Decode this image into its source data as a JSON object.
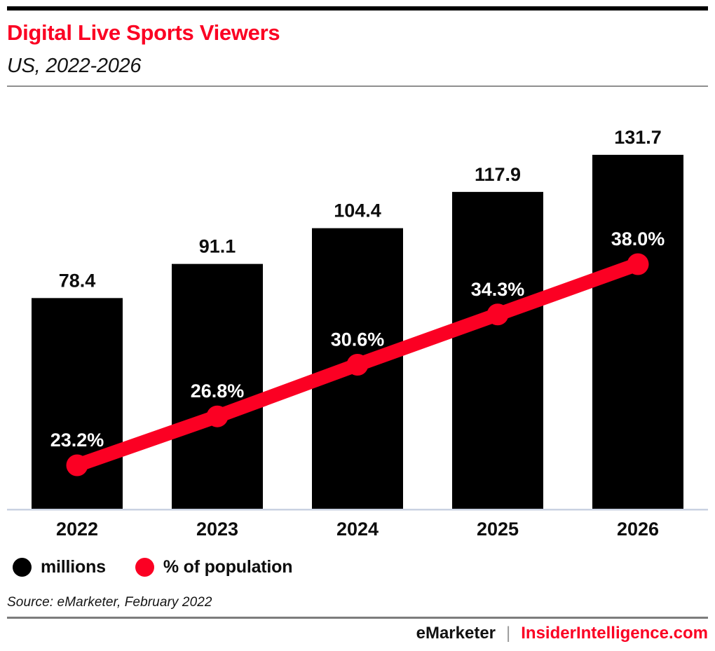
{
  "header": {
    "title": "Digital Live Sports Viewers",
    "subtitle": "US, 2022-2026"
  },
  "chart_data": {
    "type": "bar+line combo",
    "title": "Digital Live Sports Viewers",
    "subtitle": "US, 2022-2026",
    "categories": [
      "2022",
      "2023",
      "2024",
      "2025",
      "2026"
    ],
    "series": [
      {
        "name": "millions",
        "type": "bar",
        "color": "#000000",
        "values": [
          78.4,
          91.1,
          104.4,
          117.9,
          131.7
        ],
        "labels": [
          "78.4",
          "91.1",
          "104.4",
          "117.9",
          "131.7"
        ],
        "label_color": "#0d0d0d"
      },
      {
        "name": "% of population",
        "type": "line",
        "color": "#fb0023",
        "values": [
          23.2,
          26.8,
          30.6,
          34.3,
          38.0
        ],
        "labels": [
          "23.2%",
          "26.8%",
          "30.6%",
          "34.3%",
          "38.0%"
        ],
        "label_color": "#ffffff"
      }
    ],
    "xlabel": "",
    "ylabel": "",
    "grid": false,
    "y_axis_shown": false,
    "legend_position": "bottom",
    "bar_axis_range": [
      0,
      147.6
    ]
  },
  "legend": {
    "items": [
      {
        "label": "millions",
        "color": "#000000"
      },
      {
        "label": "% of population",
        "color": "#fb0023"
      }
    ]
  },
  "source": {
    "text": "Source: eMarketer, February 2022"
  },
  "footer": {
    "brand": "eMarketer",
    "separator": "|",
    "site": "InsiderIntelligence.com"
  },
  "colors": {
    "accent_red": "#fb0023",
    "bar_black": "#000000",
    "axis_line": "#c9d2e2",
    "header_rule": "#8f8f8f",
    "footer_rule": "#7c7c7c"
  }
}
